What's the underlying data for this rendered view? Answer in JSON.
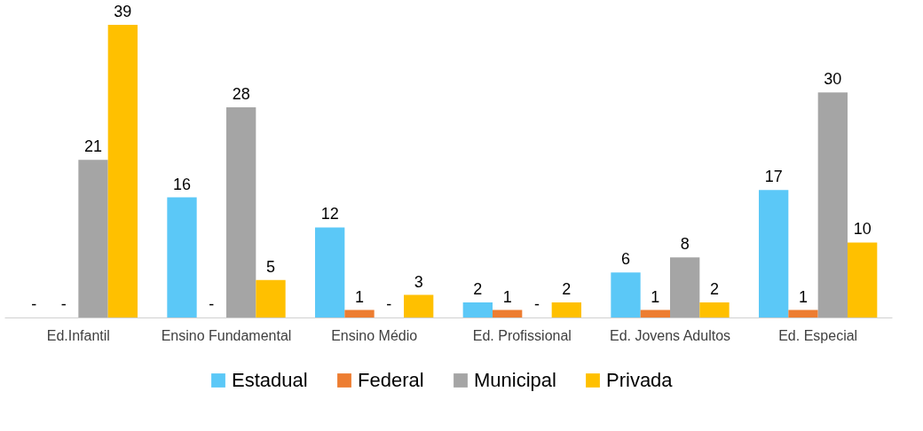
{
  "chart_data": {
    "type": "bar",
    "categories": [
      "Ed.Infantil",
      "Ensino Fundamental",
      "Ensino Médio",
      "Ed. Profissional",
      "Ed. Jovens Adultos",
      "Ed. Especial"
    ],
    "series": [
      {
        "name": "Estadual",
        "color": "#5bc8f7",
        "values": [
          null,
          16,
          12,
          2,
          6,
          17
        ],
        "value_labels": [
          "-",
          "16",
          "12",
          "2",
          "6",
          "17"
        ]
      },
      {
        "name": "Federal",
        "color": "#ed7d31",
        "values": [
          null,
          null,
          1,
          1,
          1,
          1
        ],
        "value_labels": [
          "-",
          "-",
          "1",
          "1",
          "1",
          "1"
        ]
      },
      {
        "name": "Municipal",
        "color": "#a5a5a5",
        "values": [
          21,
          28,
          null,
          null,
          8,
          30
        ],
        "value_labels": [
          "21",
          "28",
          "-",
          "-",
          "8",
          "30"
        ]
      },
      {
        "name": "Privada",
        "color": "#ffc000",
        "values": [
          39,
          5,
          3,
          2,
          2,
          10
        ],
        "value_labels": [
          "39",
          "5",
          "3",
          "2",
          "2",
          "10"
        ]
      }
    ],
    "legend": "bottom",
    "grid": false
  }
}
